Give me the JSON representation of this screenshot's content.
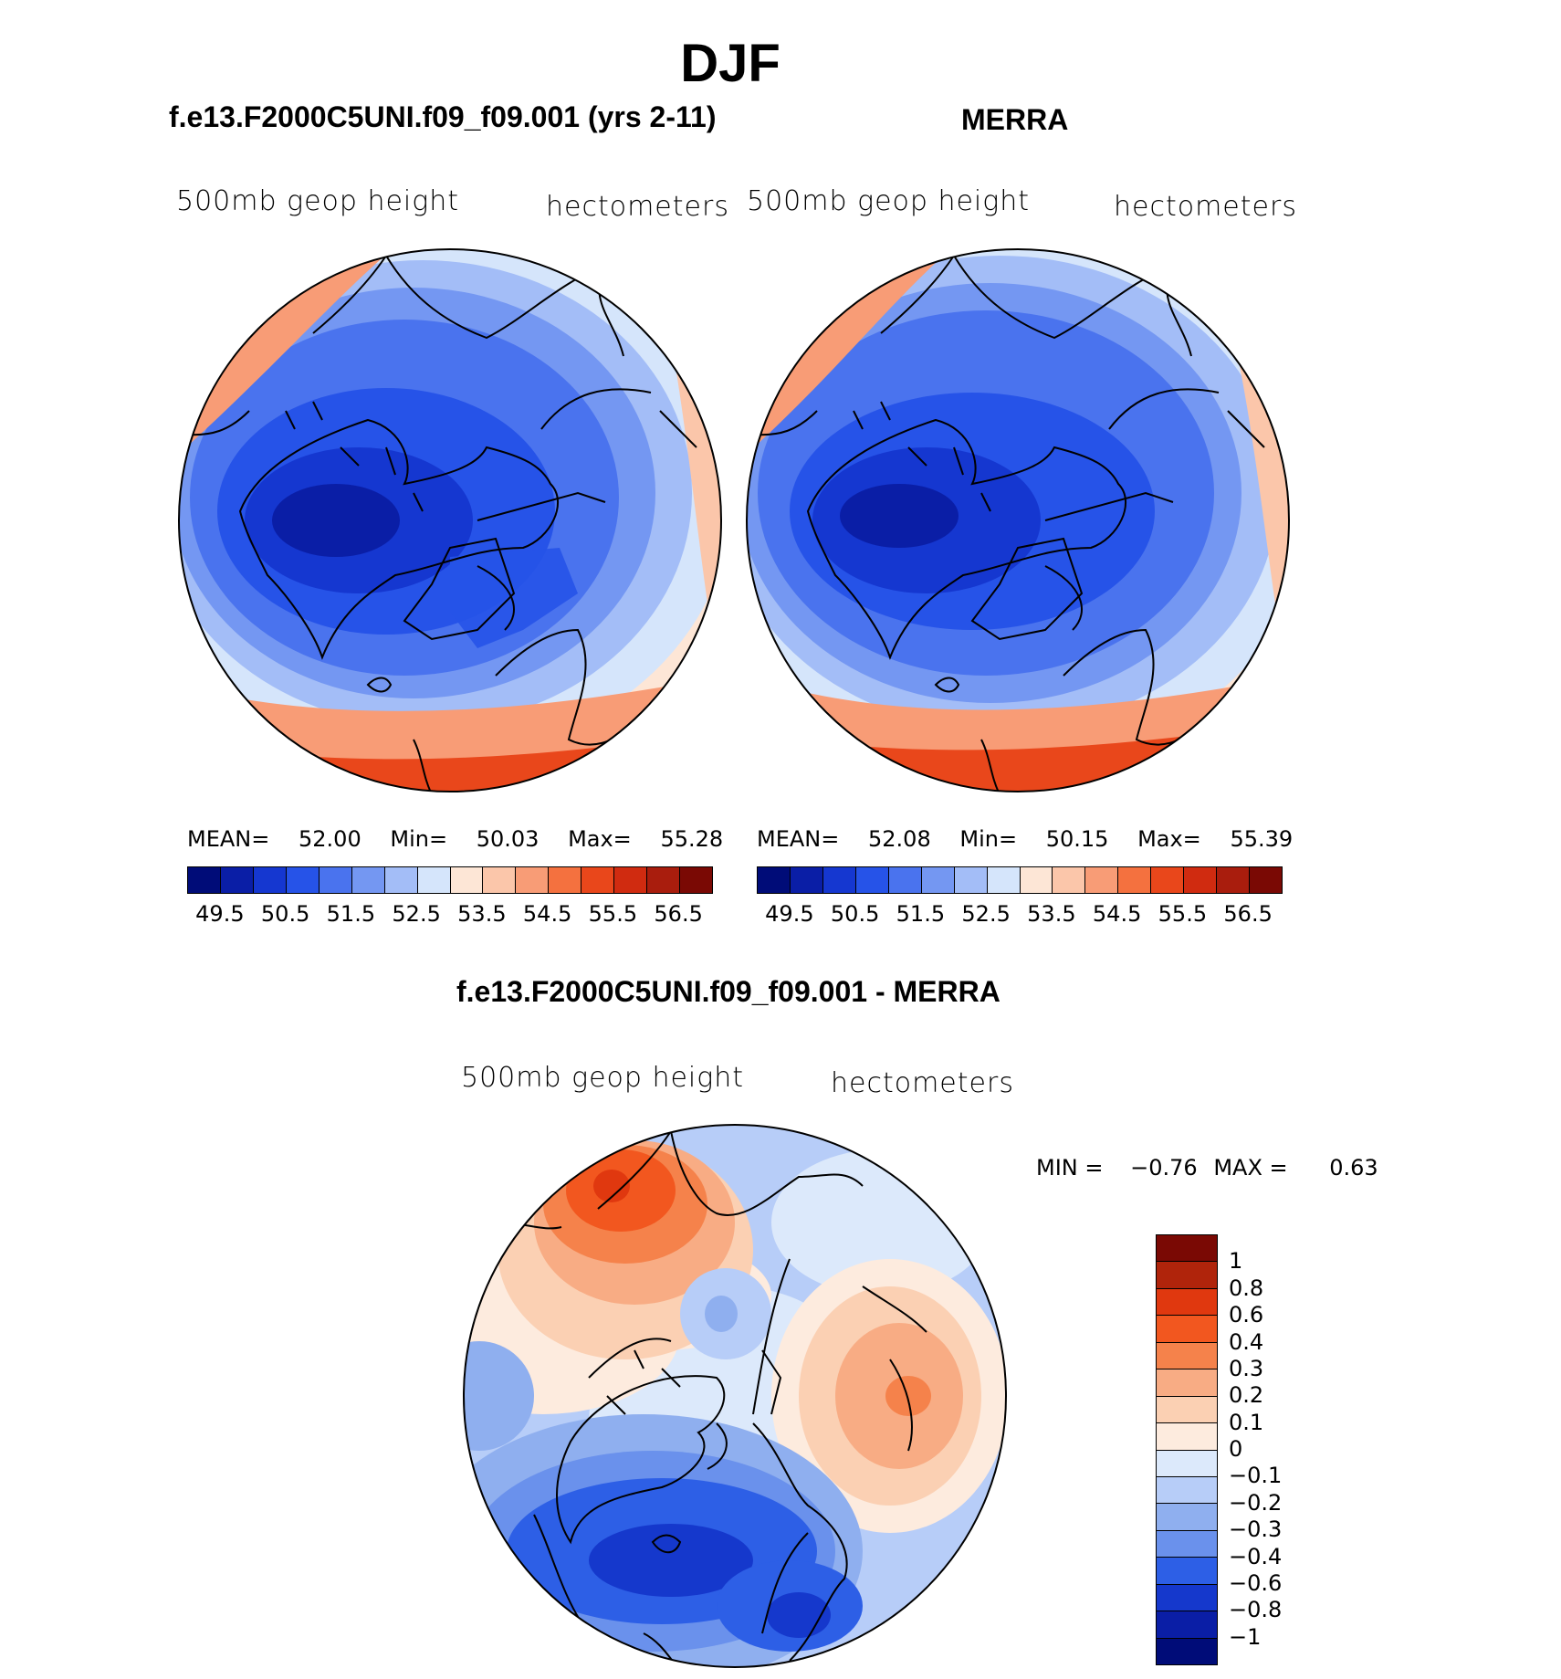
{
  "title": "DJF",
  "panels": [
    {
      "title": "f.e13.F2000C5UNI.f09_f09.001 (yrs 2-11)",
      "left_label": "500mb geop height",
      "right_label": "hectometers",
      "stats": {
        "mean_label": "MEAN=",
        "mean": "52.00",
        "min_label": "Min=",
        "min": "50.03",
        "max_label": "Max=",
        "max": "55.28"
      },
      "ticks": [
        "49.5",
        "50.5",
        "51.5",
        "52.5",
        "53.5",
        "54.5",
        "55.5",
        "56.5"
      ]
    },
    {
      "title": "MERRA",
      "left_label": "500mb geop height",
      "right_label": "hectometers",
      "stats": {
        "mean_label": "MEAN=",
        "mean": "52.08",
        "min_label": "Min=",
        "min": "50.15",
        "max_label": "Max=",
        "max": "55.39"
      },
      "ticks": [
        "49.5",
        "50.5",
        "51.5",
        "52.5",
        "53.5",
        "54.5",
        "55.5",
        "56.5"
      ]
    }
  ],
  "diff": {
    "title": "f.e13.F2000C5UNI.f09_f09.001 - MERRA",
    "left_label": "500mb geop height",
    "right_label": "hectometers",
    "minmax": {
      "min_label": "MIN =",
      "min": "−0.76",
      "max_label": "MAX =",
      "max": "0.63"
    },
    "ticks": [
      "1",
      "0.8",
      "0.6",
      "0.4",
      "0.3",
      "0.2",
      "0.1",
      "0",
      "−0.1",
      "−0.2",
      "−0.3",
      "−0.4",
      "−0.6",
      "−0.8",
      "−1"
    ]
  },
  "colors": {
    "panel_scale": [
      "#000c78",
      "#0a1ea6",
      "#1537d0",
      "#2653e8",
      "#4a73ee",
      "#7497f2",
      "#a3bdf7",
      "#d5e5fb",
      "#fde6d6",
      "#fbc6aa",
      "#f89c76",
      "#f4713f",
      "#e9471b",
      "#d02b10",
      "#a91d0d",
      "#7a0904"
    ],
    "diff_scale": [
      "#7a0904",
      "#b0240b",
      "#e0380f",
      "#f2571f",
      "#f5824b",
      "#f8ac84",
      "#fbd0b3",
      "#fdebde",
      "#dce9fb",
      "#b7cdf8",
      "#8fafef",
      "#6a91ec",
      "#2d5fe6",
      "#1538cc",
      "#0a1ea6",
      "#000c78"
    ]
  }
}
